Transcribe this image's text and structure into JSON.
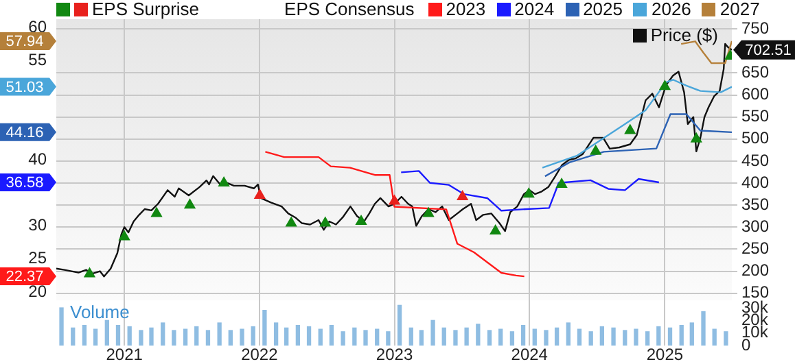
{
  "chart_data": [
    {
      "type": "line",
      "legend": "top",
      "legend_title": "EPS Consensus",
      "grid": true,
      "tick_labels": "y",
      "xlim": [
        "2020-07-01",
        "2025-07-01"
      ],
      "xticks": [
        {
          "value": "2021-01-01",
          "label": null
        },
        {
          "value": "2022-01-01",
          "label": null
        },
        {
          "value": "2023-01-01",
          "label": null
        },
        {
          "value": "2024-01-01",
          "label": null
        },
        {
          "value": "2025-01-01",
          "label": null
        }
      ],
      "annotations": [
        "22.37",
        "36.58",
        "44.16",
        "51.03",
        "57.94"
      ],
      "ylim": [
        18.75,
        61.25
      ],
      "yticks": [
        20,
        25,
        30,
        40,
        55,
        60
      ],
      "y2lim": [
        134,
        772
      ],
      "y2ticks": [
        150,
        200,
        250,
        300,
        350,
        400,
        450,
        500,
        550,
        600,
        650,
        750
      ],
      "series": [
        {
          "name": "EPS Surprise",
          "type": "scatter",
          "marker": "triangle",
          "axis": "y2",
          "x": [
            "2020-09-29",
            "2021-01-01",
            "2021-03-29",
            "2021-06-27",
            "2021-09-27",
            "2022-01-02",
            "2022-03-28",
            "2022-06-28",
            "2022-10-03",
            "2023-01-01",
            "2023-04-03",
            "2023-07-04",
            "2023-10-01",
            "2023-12-30",
            "2024-03-28",
            "2024-06-28",
            "2024-09-29",
            "2025-01-01",
            "2025-03-27",
            "2025-06-27"
          ],
          "values": [
            194,
            278,
            331,
            350,
            400,
            372,
            309,
            309,
            313,
            359,
            331,
            369,
            291,
            375,
            397,
            472,
            519,
            619,
            500,
            688
          ],
          "colors": [
            "#118811",
            "#118811",
            "#118811",
            "#118811",
            "#118811",
            "#e8211d",
            "#118811",
            "#118811",
            "#118811",
            "#e8211d",
            "#118811",
            "#e8211d",
            "#118811",
            "#118811",
            "#118811",
            "#118811",
            "#118811",
            "#118811",
            "#118811",
            "#118811"
          ]
        },
        {
          "name": "2023",
          "color": "#ff1a1a",
          "x": [
            "2022-01-17",
            "2022-03-09",
            "2022-06-10",
            "2022-07-13",
            "2022-09-03",
            "2022-11-09",
            "2022-12-19",
            "2023-01-01",
            "2023-05-21",
            "2023-06-20",
            "2023-08-04",
            "2023-10-17",
            "2023-11-26",
            "2023-12-18"
          ],
          "values": [
            41.2,
            40.4,
            40.4,
            39.0,
            38.8,
            37.7,
            37.7,
            32.9,
            32.5,
            27.3,
            26.0,
            22.9,
            22.5,
            22.37
          ]
        },
        {
          "name": "2024",
          "color": "#1a1aff",
          "x": [
            "2023-01-19",
            "2023-03-08",
            "2023-04-07",
            "2023-05-28",
            "2023-07-08",
            "2023-09-09",
            "2023-10-17",
            "2023-12-11",
            "2024-02-23",
            "2024-03-20",
            "2024-06-14",
            "2024-08-01",
            "2024-09-15",
            "2024-10-22",
            "2024-12-16"
          ],
          "values": [
            38.1,
            38.3,
            36.5,
            36.2,
            34.8,
            34.2,
            32.3,
            32.5,
            32.7,
            36.5,
            36.9,
            35.6,
            35.4,
            37.1,
            36.58
          ]
        },
        {
          "name": "2025",
          "color": "#2c62b4",
          "x": [
            "2024-02-12",
            "2024-04-18",
            "2024-07-20",
            "2024-12-09",
            "2025-01-16",
            "2025-02-28",
            "2025-04-07",
            "2025-07-01"
          ],
          "values": [
            37.5,
            39.6,
            41.2,
            41.7,
            46.9,
            46.9,
            44.4,
            44.16
          ]
        },
        {
          "name": "2026",
          "color": "#4aa6da",
          "x": [
            "2024-02-05",
            "2024-05-08",
            "2024-07-20",
            "2024-09-15",
            "2024-11-10",
            "2025-01-04",
            "2025-01-23",
            "2025-02-28",
            "2025-04-07",
            "2025-06-01",
            "2025-07-01"
          ],
          "values": [
            38.8,
            40.6,
            43.3,
            45.4,
            47.5,
            51.7,
            52.1,
            51.2,
            50.4,
            50.2,
            51.03
          ]
        },
        {
          "name": "2027",
          "color": "#b5803a",
          "x": [
            "2025-02-14",
            "2025-03-24",
            "2025-04-15",
            "2025-05-07",
            "2025-06-13",
            "2025-07-01"
          ],
          "values": [
            57.5,
            57.9,
            56.2,
            54.6,
            54.6,
            57.94
          ]
        },
        {
          "name": "Price ($)",
          "color": "#111111",
          "axis": "y2",
          "x": [
            "2020-07-01",
            "2020-07-23",
            "2020-08-11",
            "2020-08-30",
            "2020-09-20",
            "2020-10-05",
            "2020-10-27",
            "2020-11-07",
            "2020-11-25",
            "2020-12-13",
            "2020-12-24",
            "2021-01-01",
            "2021-01-12",
            "2021-01-26",
            "2021-02-10",
            "2021-02-25",
            "2021-03-15",
            "2021-04-02",
            "2021-04-28",
            "2021-05-17",
            "2021-05-28",
            "2021-06-09",
            "2021-06-24",
            "2021-07-23",
            "2021-08-11",
            "2021-08-18",
            "2021-08-29",
            "2021-09-17",
            "2021-09-28",
            "2021-10-24",
            "2021-11-22",
            "2021-12-17",
            "2021-12-28",
            "2022-01-05",
            "2022-02-01",
            "2022-03-02",
            "2022-03-20",
            "2022-04-08",
            "2022-04-26",
            "2022-05-18",
            "2022-06-10",
            "2022-06-24",
            "2022-07-09",
            "2022-07-27",
            "2022-08-14",
            "2022-09-04",
            "2022-09-22",
            "2022-10-11",
            "2022-10-25",
            "2022-11-09",
            "2022-11-24",
            "2022-12-16",
            "2023-01-01",
            "2023-01-20",
            "2023-02-07",
            "2023-02-18",
            "2023-03-01",
            "2023-03-16",
            "2023-04-03",
            "2023-04-22",
            "2023-05-10",
            "2023-05-28",
            "2023-06-20",
            "2023-07-05",
            "2023-07-27",
            "2023-08-10",
            "2023-08-29",
            "2023-09-20",
            "2023-10-12",
            "2023-10-27",
            "2023-11-10",
            "2023-11-29",
            "2023-12-17",
            "2024-01-01",
            "2024-01-16",
            "2024-02-03",
            "2024-02-21",
            "2024-03-11",
            "2024-03-29",
            "2024-04-17",
            "2024-05-05",
            "2024-05-24",
            "2024-06-22",
            "2024-07-18",
            "2024-08-05",
            "2024-08-31",
            "2024-09-29",
            "2024-10-17",
            "2024-11-10",
            "2024-11-28",
            "2024-12-16",
            "2025-01-04",
            "2025-01-23",
            "2025-02-07",
            "2025-02-22",
            "2025-03-04",
            "2025-03-19",
            "2025-03-27",
            "2025-04-07",
            "2025-04-18",
            "2025-04-29",
            "2025-05-14",
            "2025-05-29",
            "2025-06-09",
            "2025-06-13",
            "2025-06-20",
            "2025-07-01"
          ],
          "values": [
            206,
            203,
            200,
            197,
            203,
            194,
            200,
            188,
            206,
            241,
            284,
            300,
            288,
            313,
            328,
            341,
            338,
            353,
            384,
            369,
            388,
            381,
            372,
            391,
            406,
            397,
            416,
            397,
            403,
            394,
            394,
            388,
            397,
            366,
            356,
            347,
            331,
            322,
            309,
            306,
            316,
            294,
            313,
            306,
            322,
            347,
            325,
            313,
            331,
            353,
            366,
            347,
            353,
            369,
            353,
            347,
            303,
            325,
            341,
            334,
            347,
            316,
            331,
            341,
            353,
            316,
            328,
            331,
            309,
            291,
            334,
            347,
            375,
            384,
            375,
            381,
            391,
            416,
            441,
            453,
            456,
            466,
            503,
            503,
            478,
            481,
            488,
            509,
            588,
            603,
            572,
            622,
            644,
            653,
            606,
            534,
            550,
            472,
            503,
            550,
            572,
            597,
            609,
            659,
            716,
            709,
            702.51
          ],
          "value_labels": [
            null,
            null,
            null,
            null,
            null,
            null,
            null,
            null,
            null,
            null,
            null,
            null,
            null,
            null,
            null,
            null,
            null,
            null,
            null,
            null,
            null,
            null,
            null,
            null,
            null,
            null,
            null,
            null,
            null,
            null,
            null,
            null,
            null,
            null,
            null,
            null,
            null,
            null,
            null,
            null,
            null,
            null,
            null,
            null,
            null,
            null,
            null,
            null,
            null,
            null,
            null,
            null,
            null,
            null,
            null,
            null,
            null,
            null,
            null,
            null,
            null,
            null,
            null,
            null,
            null,
            null,
            null,
            null,
            null,
            null,
            null,
            null,
            null,
            null,
            null,
            null,
            null,
            null,
            null,
            null,
            null,
            null,
            null,
            null,
            null,
            null,
            null,
            null,
            null,
            null,
            null,
            null,
            null,
            null,
            null,
            null,
            null,
            null,
            null,
            null,
            null,
            null,
            null,
            null,
            null,
            null,
            "702.51"
          ]
        }
      ]
    },
    {
      "type": "bar",
      "title": "Volume",
      "grid": "x",
      "xlim": [
        "2020-07-01",
        "2025-07-01"
      ],
      "xticks": [
        {
          "value": "2021-01-01",
          "label": "2021"
        },
        {
          "value": "2022-01-01",
          "label": "2022"
        },
        {
          "value": "2023-01-01",
          "label": "2023"
        },
        {
          "value": "2024-01-01",
          "label": "2024"
        },
        {
          "value": "2025-01-01",
          "label": "2025"
        }
      ],
      "y2lim": [
        0,
        36000
      ],
      "y2ticks": [
        0,
        {
          "value": 10000,
          "label": "10k"
        },
        {
          "value": 20000,
          "label": "20k"
        },
        {
          "value": 30000,
          "label": "30k"
        }
      ],
      "x": [
        "2020-07-15",
        "2020-08-15",
        "2020-09-15",
        "2020-10-15",
        "2020-11-15",
        "2020-12-15",
        "2021-01-15",
        "2021-02-15",
        "2021-03-15",
        "2021-04-15",
        "2021-05-15",
        "2021-06-15",
        "2021-07-15",
        "2021-08-15",
        "2021-09-15",
        "2021-10-15",
        "2021-11-15",
        "2021-12-15",
        "2022-01-15",
        "2022-02-15",
        "2022-03-15",
        "2022-04-15",
        "2022-05-15",
        "2022-06-15",
        "2022-07-15",
        "2022-08-15",
        "2022-09-15",
        "2022-10-15",
        "2022-11-15",
        "2022-12-15",
        "2023-01-15",
        "2023-02-15",
        "2023-03-15",
        "2023-04-15",
        "2023-05-15",
        "2023-06-15",
        "2023-07-15",
        "2023-08-15",
        "2023-09-15",
        "2023-10-15",
        "2023-11-15",
        "2023-12-15",
        "2024-01-15",
        "2024-02-15",
        "2024-03-15",
        "2024-04-15",
        "2024-05-15",
        "2024-06-15",
        "2024-07-15",
        "2024-08-15",
        "2024-09-15",
        "2024-10-15",
        "2024-11-15",
        "2024-12-15",
        "2025-01-15",
        "2025-02-15",
        "2025-03-15",
        "2025-04-15",
        "2025-05-15",
        "2025-06-15"
      ],
      "series": [
        {
          "color": "#8fbde2",
          "axis": "y2",
          "values": [
            30000,
            14000,
            16000,
            13000,
            20000,
            16000,
            15000,
            12000,
            14000,
            18000,
            12000,
            13000,
            15000,
            12000,
            18000,
            12000,
            13000,
            15000,
            28000,
            18000,
            14000,
            16000,
            15000,
            13000,
            16000,
            11000,
            14000,
            12000,
            13000,
            11000,
            32000,
            14000,
            12000,
            20000,
            14000,
            12000,
            14000,
            17000,
            12000,
            13000,
            11000,
            16000,
            13000,
            12000,
            14000,
            18000,
            13000,
            11000,
            15000,
            14000,
            12000,
            13000,
            11000,
            15000,
            14000,
            16000,
            18000,
            27000,
            13000,
            11000
          ]
        }
      ]
    }
  ]
}
